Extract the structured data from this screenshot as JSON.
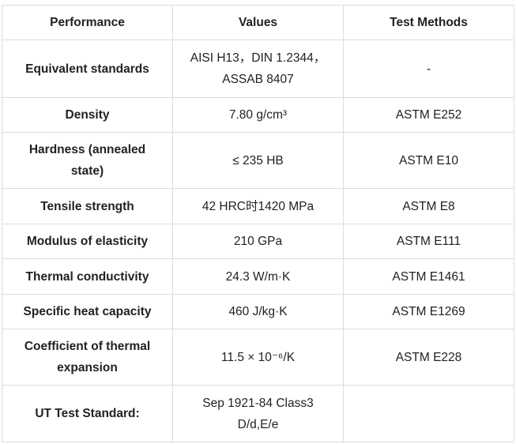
{
  "table": {
    "headers": [
      "Performance",
      "Values",
      "Test Methods"
    ],
    "rows": [
      {
        "property_lines": [
          "Equivalent standards"
        ],
        "value_lines": [
          "AISI H13，DIN 1.2344，",
          "ASSAB 8407"
        ],
        "method": "-"
      },
      {
        "property_lines": [
          "Density"
        ],
        "value_lines": [
          "7.80 g/cm³"
        ],
        "method": "ASTM E252"
      },
      {
        "property_lines": [
          "Hardness (annealed",
          "state)"
        ],
        "value_lines": [
          "≤ 235 HB"
        ],
        "method": "ASTM E10"
      },
      {
        "property_lines": [
          "Tensile strength"
        ],
        "value_lines": [
          "42 HRC时1420 MPa"
        ],
        "method": "ASTM E8"
      },
      {
        "property_lines": [
          "Modulus of elasticity"
        ],
        "value_lines": [
          "210 GPa"
        ],
        "method": "ASTM E111"
      },
      {
        "property_lines": [
          "Thermal conductivity"
        ],
        "value_lines": [
          "24.3 W/m·K"
        ],
        "method": "ASTM E1461"
      },
      {
        "property_lines": [
          "Specific heat capacity"
        ],
        "value_lines": [
          "460 J/kg·K"
        ],
        "method": "ASTM E1269"
      },
      {
        "property_lines": [
          "Coefficient of thermal",
          "expansion"
        ],
        "value_lines": [
          "11.5 × 10⁻⁶/K"
        ],
        "method": "ASTM E228"
      },
      {
        "property_lines": [
          "UT Test Standard:"
        ],
        "value_lines": [
          "Sep 1921-84 Class3",
          "D/d,E/e"
        ],
        "method": ""
      }
    ]
  }
}
